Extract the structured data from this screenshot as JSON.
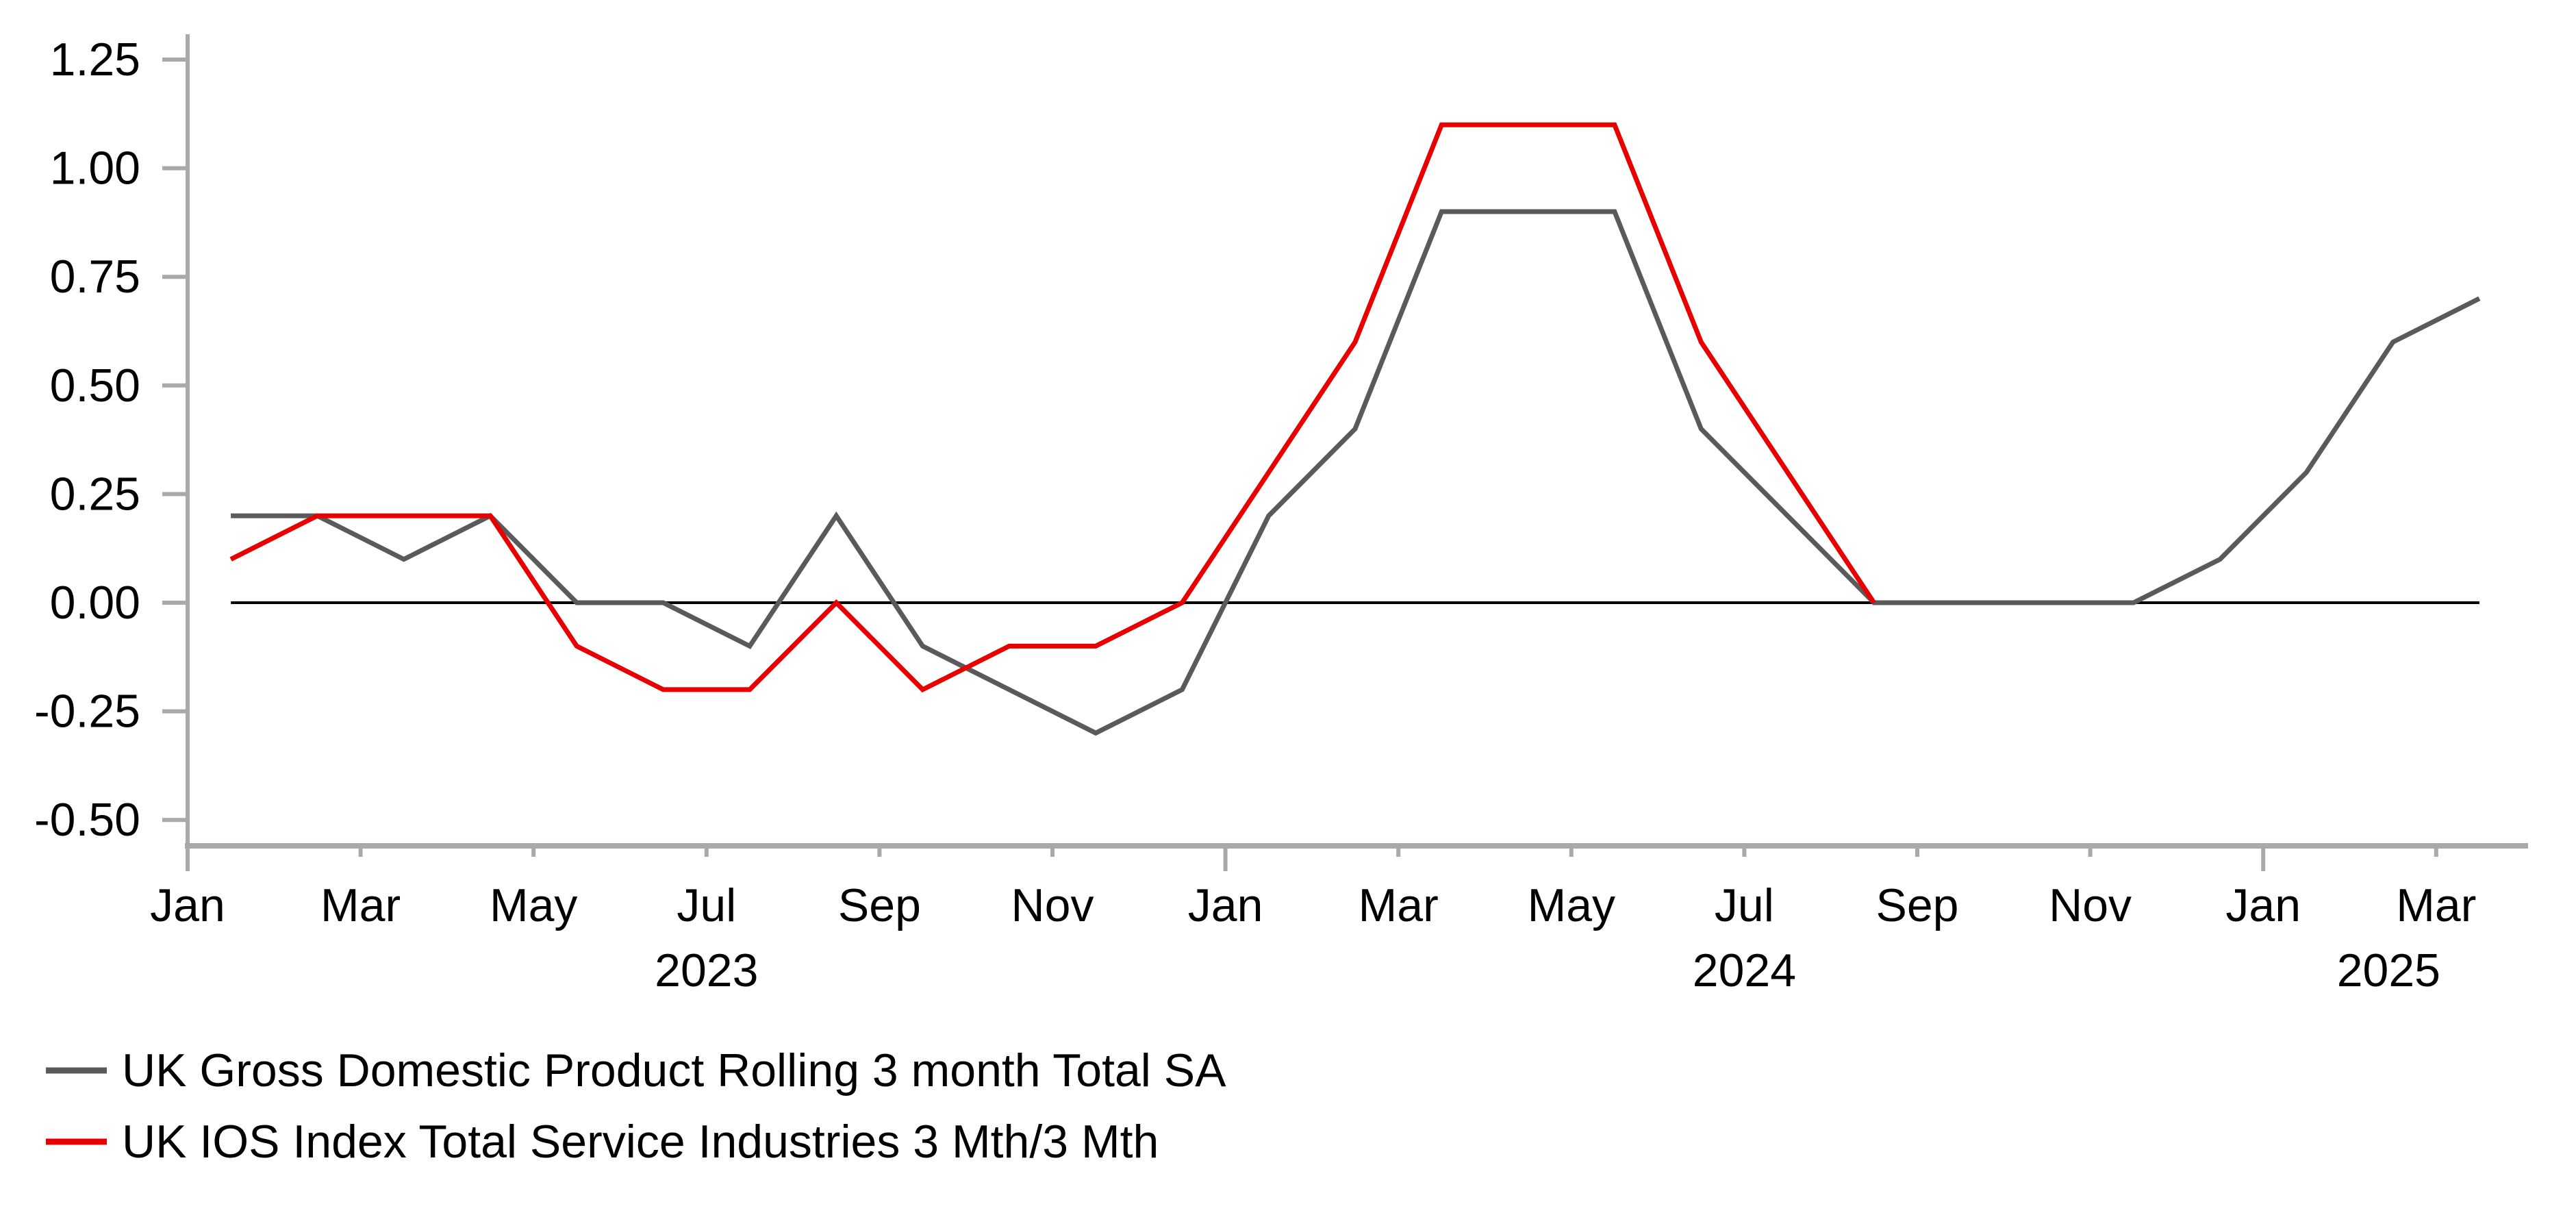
{
  "chart_data": {
    "type": "line",
    "title": "",
    "x_start_month": "Jan 2023",
    "months": [
      "Jan 2023",
      "Feb 2023",
      "Mar 2023",
      "Apr 2023",
      "May 2023",
      "Jun 2023",
      "Jul 2023",
      "Aug 2023",
      "Sep 2023",
      "Oct 2023",
      "Nov 2023",
      "Dec 2023",
      "Jan 2024",
      "Feb 2024",
      "Mar 2024",
      "Apr 2024",
      "May 2024",
      "Jun 2024",
      "Jul 2024",
      "Aug 2024",
      "Sep 2024",
      "Oct 2024",
      "Nov 2024",
      "Dec 2024",
      "Jan 2025",
      "Feb 2025",
      "Mar 2025"
    ],
    "series": [
      {
        "name": "UK Gross Domestic Product Rolling 3 month Total SA",
        "color": "#5a5a5a",
        "values": [
          0.2,
          0.2,
          0.1,
          0.2,
          0.0,
          0.0,
          -0.1,
          0.2,
          -0.1,
          -0.2,
          -0.3,
          -0.2,
          0.2,
          0.4,
          0.9,
          0.9,
          0.9,
          0.4,
          0.2,
          0.0,
          0.0,
          0.0,
          0.0,
          0.1,
          0.3,
          0.6,
          0.7
        ]
      },
      {
        "name": "UK IOS Index Total Service Industries 3 Mth/3 Mth",
        "color": "#e80000",
        "values": [
          0.1,
          0.2,
          0.2,
          0.2,
          -0.1,
          -0.2,
          -0.2,
          0.0,
          -0.2,
          -0.1,
          -0.1,
          0.0,
          0.3,
          0.6,
          1.1,
          1.1,
          1.1,
          0.6,
          0.3,
          0.0
        ]
      }
    ],
    "y_ticks": [
      {
        "label": "1.25",
        "value": 1.25
      },
      {
        "label": "1.00",
        "value": 1.0
      },
      {
        "label": "0.75",
        "value": 0.75
      },
      {
        "label": "0.50",
        "value": 0.5
      },
      {
        "label": "0.25",
        "value": 0.25
      },
      {
        "label": "0.00",
        "value": 0.0
      },
      {
        "label": "-0.25",
        "value": -0.25
      },
      {
        "label": "-0.50",
        "value": -0.5
      }
    ],
    "x_ticks": [
      {
        "label": "Jan",
        "month_offset": 0,
        "major": true
      },
      {
        "label": "Mar",
        "month_offset": 2,
        "major": false
      },
      {
        "label": "May",
        "month_offset": 4,
        "major": false
      },
      {
        "label": "Jul",
        "month_offset": 6,
        "major": false
      },
      {
        "label": "Sep",
        "month_offset": 8,
        "major": false
      },
      {
        "label": "Nov",
        "month_offset": 10,
        "major": false
      },
      {
        "label": "Jan",
        "month_offset": 12,
        "major": true
      },
      {
        "label": "Mar",
        "month_offset": 14,
        "major": false
      },
      {
        "label": "May",
        "month_offset": 16,
        "major": false
      },
      {
        "label": "Jul",
        "month_offset": 18,
        "major": false
      },
      {
        "label": "Sep",
        "month_offset": 20,
        "major": false
      },
      {
        "label": "Nov",
        "month_offset": 22,
        "major": false
      },
      {
        "label": "Jan",
        "month_offset": 24,
        "major": true
      },
      {
        "label": "Mar",
        "month_offset": 26,
        "major": false
      }
    ],
    "year_labels": [
      {
        "text": "2023",
        "month_offset": 6
      },
      {
        "text": "2024",
        "month_offset": 18
      },
      {
        "text": "2025",
        "month_offset": 25.45
      }
    ],
    "ylim": [
      -0.5,
      1.25
    ],
    "grid": false,
    "zero_line": true,
    "zero_line_color": "#000000",
    "axis_color": "#a9a9a9",
    "legend_position": "bottom-left"
  }
}
